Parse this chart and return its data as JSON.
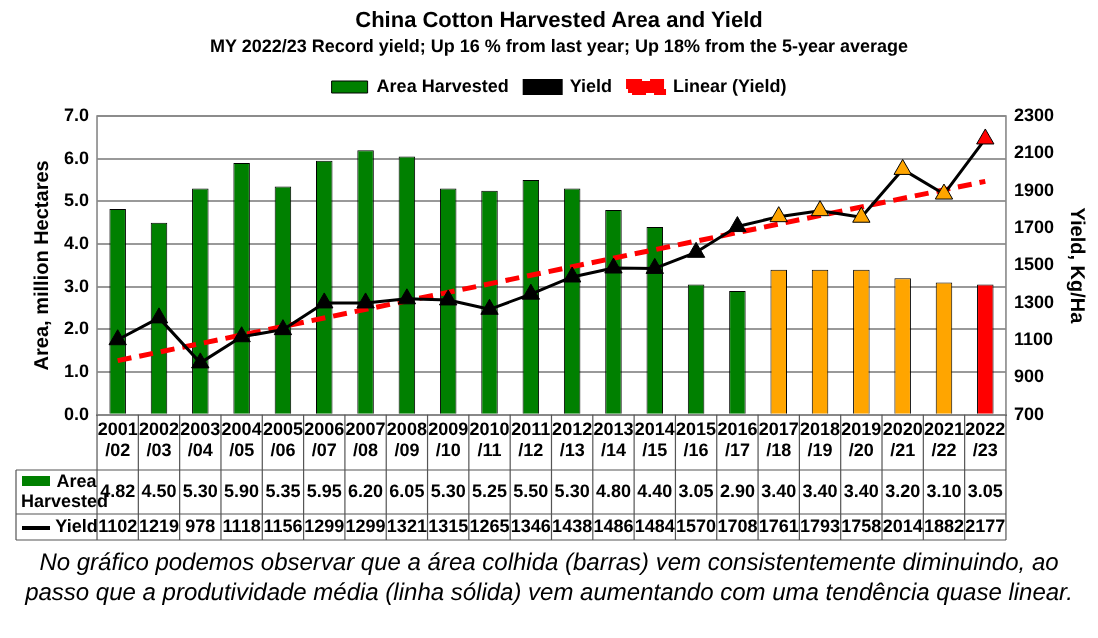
{
  "chart_data": {
    "type": "bar",
    "title": "China Cotton Harvested Area and Yield",
    "subtitle": "MY 2022/23 Record yield; Up 16 % from last year; Up 18% from the 5-year average",
    "categories": [
      "2001/02",
      "2002/03",
      "2003/04",
      "2004/05",
      "2005/06",
      "2006/07",
      "2007/08",
      "2008/09",
      "2009/10",
      "2010/11",
      "2011/12",
      "2012/13",
      "2013/14",
      "2014/15",
      "2015/16",
      "2016/17",
      "2017/18",
      "2018/19",
      "2019/20",
      "2020/21",
      "2021/22",
      "2022/23"
    ],
    "series": [
      {
        "name": "Area Harvested",
        "color": "#008000",
        "value_labels": [
          "4.82",
          "4.50",
          "5.30",
          "5.90",
          "5.35",
          "5.95",
          "6.20",
          "6.05",
          "5.30",
          "5.25",
          "5.50",
          "5.30",
          "4.80",
          "4.40",
          "3.05",
          "2.90",
          "3.40",
          "3.40",
          "3.40",
          "3.20",
          "3.10",
          "3.05"
        ],
        "colors": [
          "#008000",
          "#008000",
          "#008000",
          "#008000",
          "#008000",
          "#008000",
          "#008000",
          "#008000",
          "#008000",
          "#008000",
          "#008000",
          "#008000",
          "#008000",
          "#008000",
          "#008000",
          "#008000",
          "#ffa500",
          "#ffa500",
          "#ffa500",
          "#ffa500",
          "#ffa500",
          "#ff0000"
        ],
        "values": [
          4.82,
          4.5,
          5.3,
          5.9,
          5.35,
          5.95,
          6.2,
          6.05,
          5.3,
          5.25,
          5.5,
          5.3,
          4.8,
          4.4,
          3.05,
          2.9,
          3.4,
          3.4,
          3.4,
          3.2,
          3.1,
          3.05
        ]
      },
      {
        "name": "Yield",
        "type": "line",
        "axis": "y2",
        "color": "#000000",
        "colors": [
          "#000000",
          "#000000",
          "#000000",
          "#000000",
          "#000000",
          "#000000",
          "#000000",
          "#000000",
          "#000000",
          "#000000",
          "#000000",
          "#000000",
          "#000000",
          "#000000",
          "#000000",
          "#000000",
          "#ffa500",
          "#ffa500",
          "#ffa500",
          "#ffa500",
          "#ffa500",
          "#ff0000"
        ],
        "marker": "triangle",
        "value_labels": [
          "1102",
          "1219",
          "978",
          "1118",
          "1156",
          "1299",
          "1299",
          "1321",
          "1315",
          "1265",
          "1346",
          "1438",
          "1486",
          "1484",
          "1570",
          "1708",
          "1761",
          "1793",
          "1758",
          "2014",
          "1882",
          "2177"
        ],
        "values": [
          1102,
          1219,
          978,
          1118,
          1156,
          1299,
          1299,
          1321,
          1315,
          1265,
          1346,
          1438,
          1486,
          1484,
          1570,
          1708,
          1761,
          1793,
          1758,
          2014,
          1882,
          2177
        ]
      },
      {
        "name": "Linear (Yield)",
        "type": "line",
        "axis": "y2",
        "color": "#ff0000",
        "line_style": "dashed",
        "marker": "none",
        "values": [
          990,
          null,
          null,
          null,
          null,
          null,
          null,
          null,
          null,
          null,
          null,
          null,
          null,
          null,
          null,
          null,
          null,
          null,
          null,
          null,
          null,
          1950
        ]
      }
    ],
    "ylabel": "Area, million Hectares",
    "y2label": "Yield, Kg/Ha",
    "ylim": [
      0,
      7
    ],
    "yticks": [
      {
        "value": 0,
        "label": "0.0"
      },
      {
        "value": 1,
        "label": "1.0"
      },
      {
        "value": 2,
        "label": "2.0"
      },
      {
        "value": 3,
        "label": "3.0"
      },
      {
        "value": 4,
        "label": "4.0"
      },
      {
        "value": 5,
        "label": "5.0"
      },
      {
        "value": 6,
        "label": "6.0"
      },
      {
        "value": 7,
        "label": "7.0"
      }
    ],
    "y2lim": [
      700,
      2300
    ],
    "y2ticks": [
      700,
      900,
      1100,
      1300,
      1500,
      1700,
      1900,
      2100,
      2300
    ],
    "grid": "y",
    "legend": "top",
    "annotations": [
      "No gráfico podemos observar que a área colhida (barras) vem consistentemente diminuindo, ao passo que a produtividade média (linha sólida) vem aumentando com uma tendência quase linear."
    ]
  }
}
